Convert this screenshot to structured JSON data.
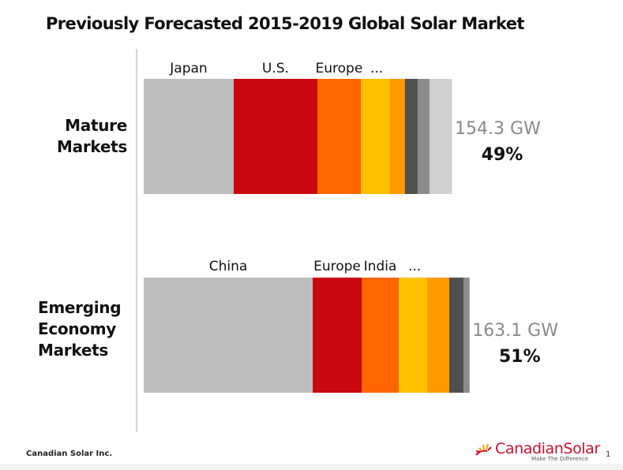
{
  "chart_data": {
    "type": "bar",
    "orientation": "horizontal-stacked",
    "title": "Previously Forecasted 2015-2019 Global Solar Market",
    "xlabel": "",
    "ylabel": "",
    "unit": "GW",
    "grid": false,
    "rows": [
      {
        "name": "Mature Markets",
        "name_lines": [
          "Mature",
          "Markets"
        ],
        "total_label": "154.3 GW",
        "share_label": "49%",
        "total": 154.3,
        "segments": [
          {
            "label": "Japan",
            "value": 45.1,
            "color": "#bdbdbd"
          },
          {
            "label": "U.S.",
            "value": 41.9,
            "color": "#c8090f"
          },
          {
            "label": "Europe",
            "value": 21.8,
            "color": "#ff6600"
          },
          {
            "label": "...",
            "value": 14.6,
            "color": "#ffc000"
          },
          {
            "label": "",
            "value": 7.5,
            "color": "#ff9900"
          },
          {
            "label": "",
            "value": 6.3,
            "color": "#4f504f"
          },
          {
            "label": "",
            "value": 6.0,
            "color": "#8c8c8c"
          },
          {
            "label": "",
            "value": 11.1,
            "color": "#d0d0d0"
          }
        ]
      },
      {
        "name": "Emerging Economy Markets",
        "name_lines": [
          "Emerging",
          "Economy",
          "Markets"
        ],
        "total_label": "163.1 GW",
        "share_label": "51%",
        "total": 163.1,
        "segments": [
          {
            "label": "China",
            "value": 84.7,
            "color": "#bdbdbd"
          },
          {
            "label": "Europe",
            "value": 24.5,
            "color": "#c8090f"
          },
          {
            "label": "India",
            "value": 18.6,
            "color": "#ff6600"
          },
          {
            "label": "...",
            "value": 14.2,
            "color": "#ffc000"
          },
          {
            "label": "",
            "value": 11.1,
            "color": "#ff9900"
          },
          {
            "label": "",
            "value": 7.1,
            "color": "#4f504f"
          },
          {
            "label": "",
            "value": 2.9,
            "color": "#8c8c8c"
          }
        ]
      }
    ]
  },
  "footer": {
    "company": "Canadian Solar Inc.",
    "logo_name": "CanadianSolar",
    "logo_tagline": "Make The Difference",
    "page_number": "1"
  },
  "icons": {
    "logo": "sun-rays-logo-icon"
  }
}
